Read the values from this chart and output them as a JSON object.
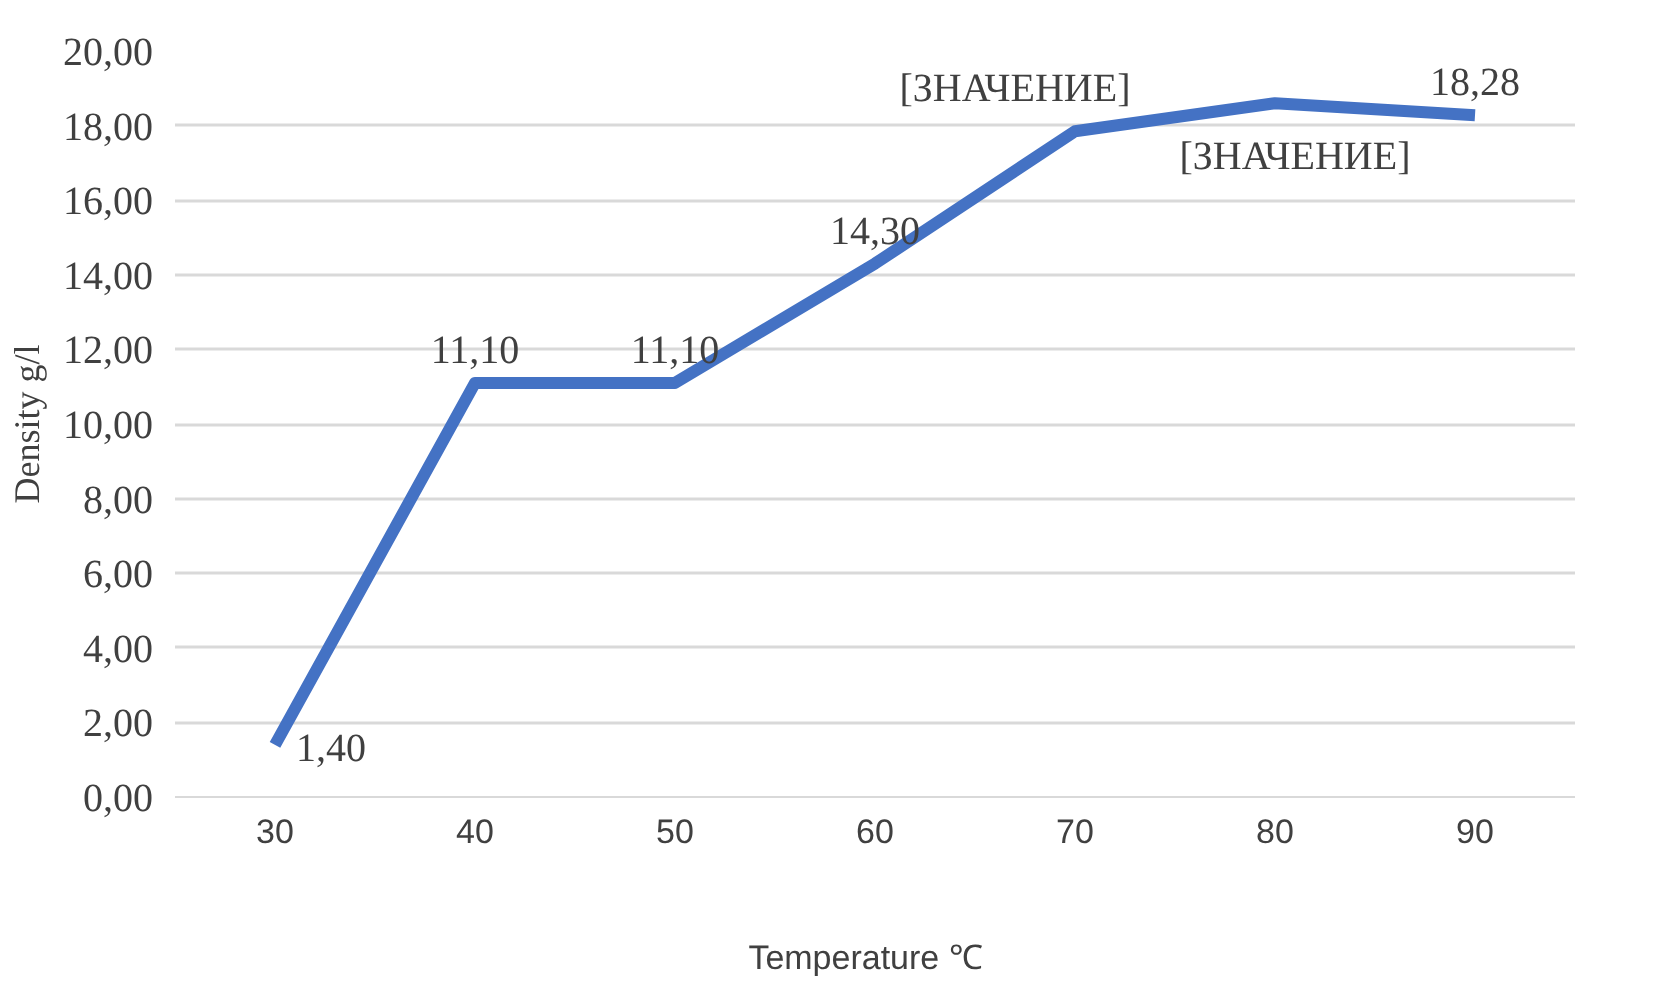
{
  "chart_data": {
    "type": "line",
    "xlabel": "Temperature   ℃",
    "ylabel": "Density g/l",
    "categories": [
      "30",
      "40",
      "50",
      "60",
      "70",
      "80",
      "90"
    ],
    "series": [
      {
        "color": "#4472c4",
        "values": [
          1.4,
          11.1,
          11.1,
          14.3,
          17.85,
          18.6,
          18.28
        ],
        "value_labels": [
          "1,40",
          "11,10",
          "11,10",
          "14,30",
          "[ЗНАЧЕНИЕ]",
          "[ЗНАЧЕНИЕ]",
          "18,28"
        ]
      }
    ],
    "ylim": [
      0,
      20
    ],
    "yticks": [
      {
        "value": 0,
        "label": "0,00"
      },
      {
        "value": 2,
        "label": "2,00"
      },
      {
        "value": 4,
        "label": "4,00"
      },
      {
        "value": 6,
        "label": "6,00"
      },
      {
        "value": 8,
        "label": "8,00"
      },
      {
        "value": 10,
        "label": "10,00"
      },
      {
        "value": 12,
        "label": "12,00"
      },
      {
        "value": 14,
        "label": "14,00"
      },
      {
        "value": 16,
        "label": "16,00"
      },
      {
        "value": 18,
        "label": "18,00"
      },
      {
        "value": 20,
        "label": "20,00"
      }
    ],
    "grid": "y",
    "marker": "none",
    "line_style": "solid"
  }
}
